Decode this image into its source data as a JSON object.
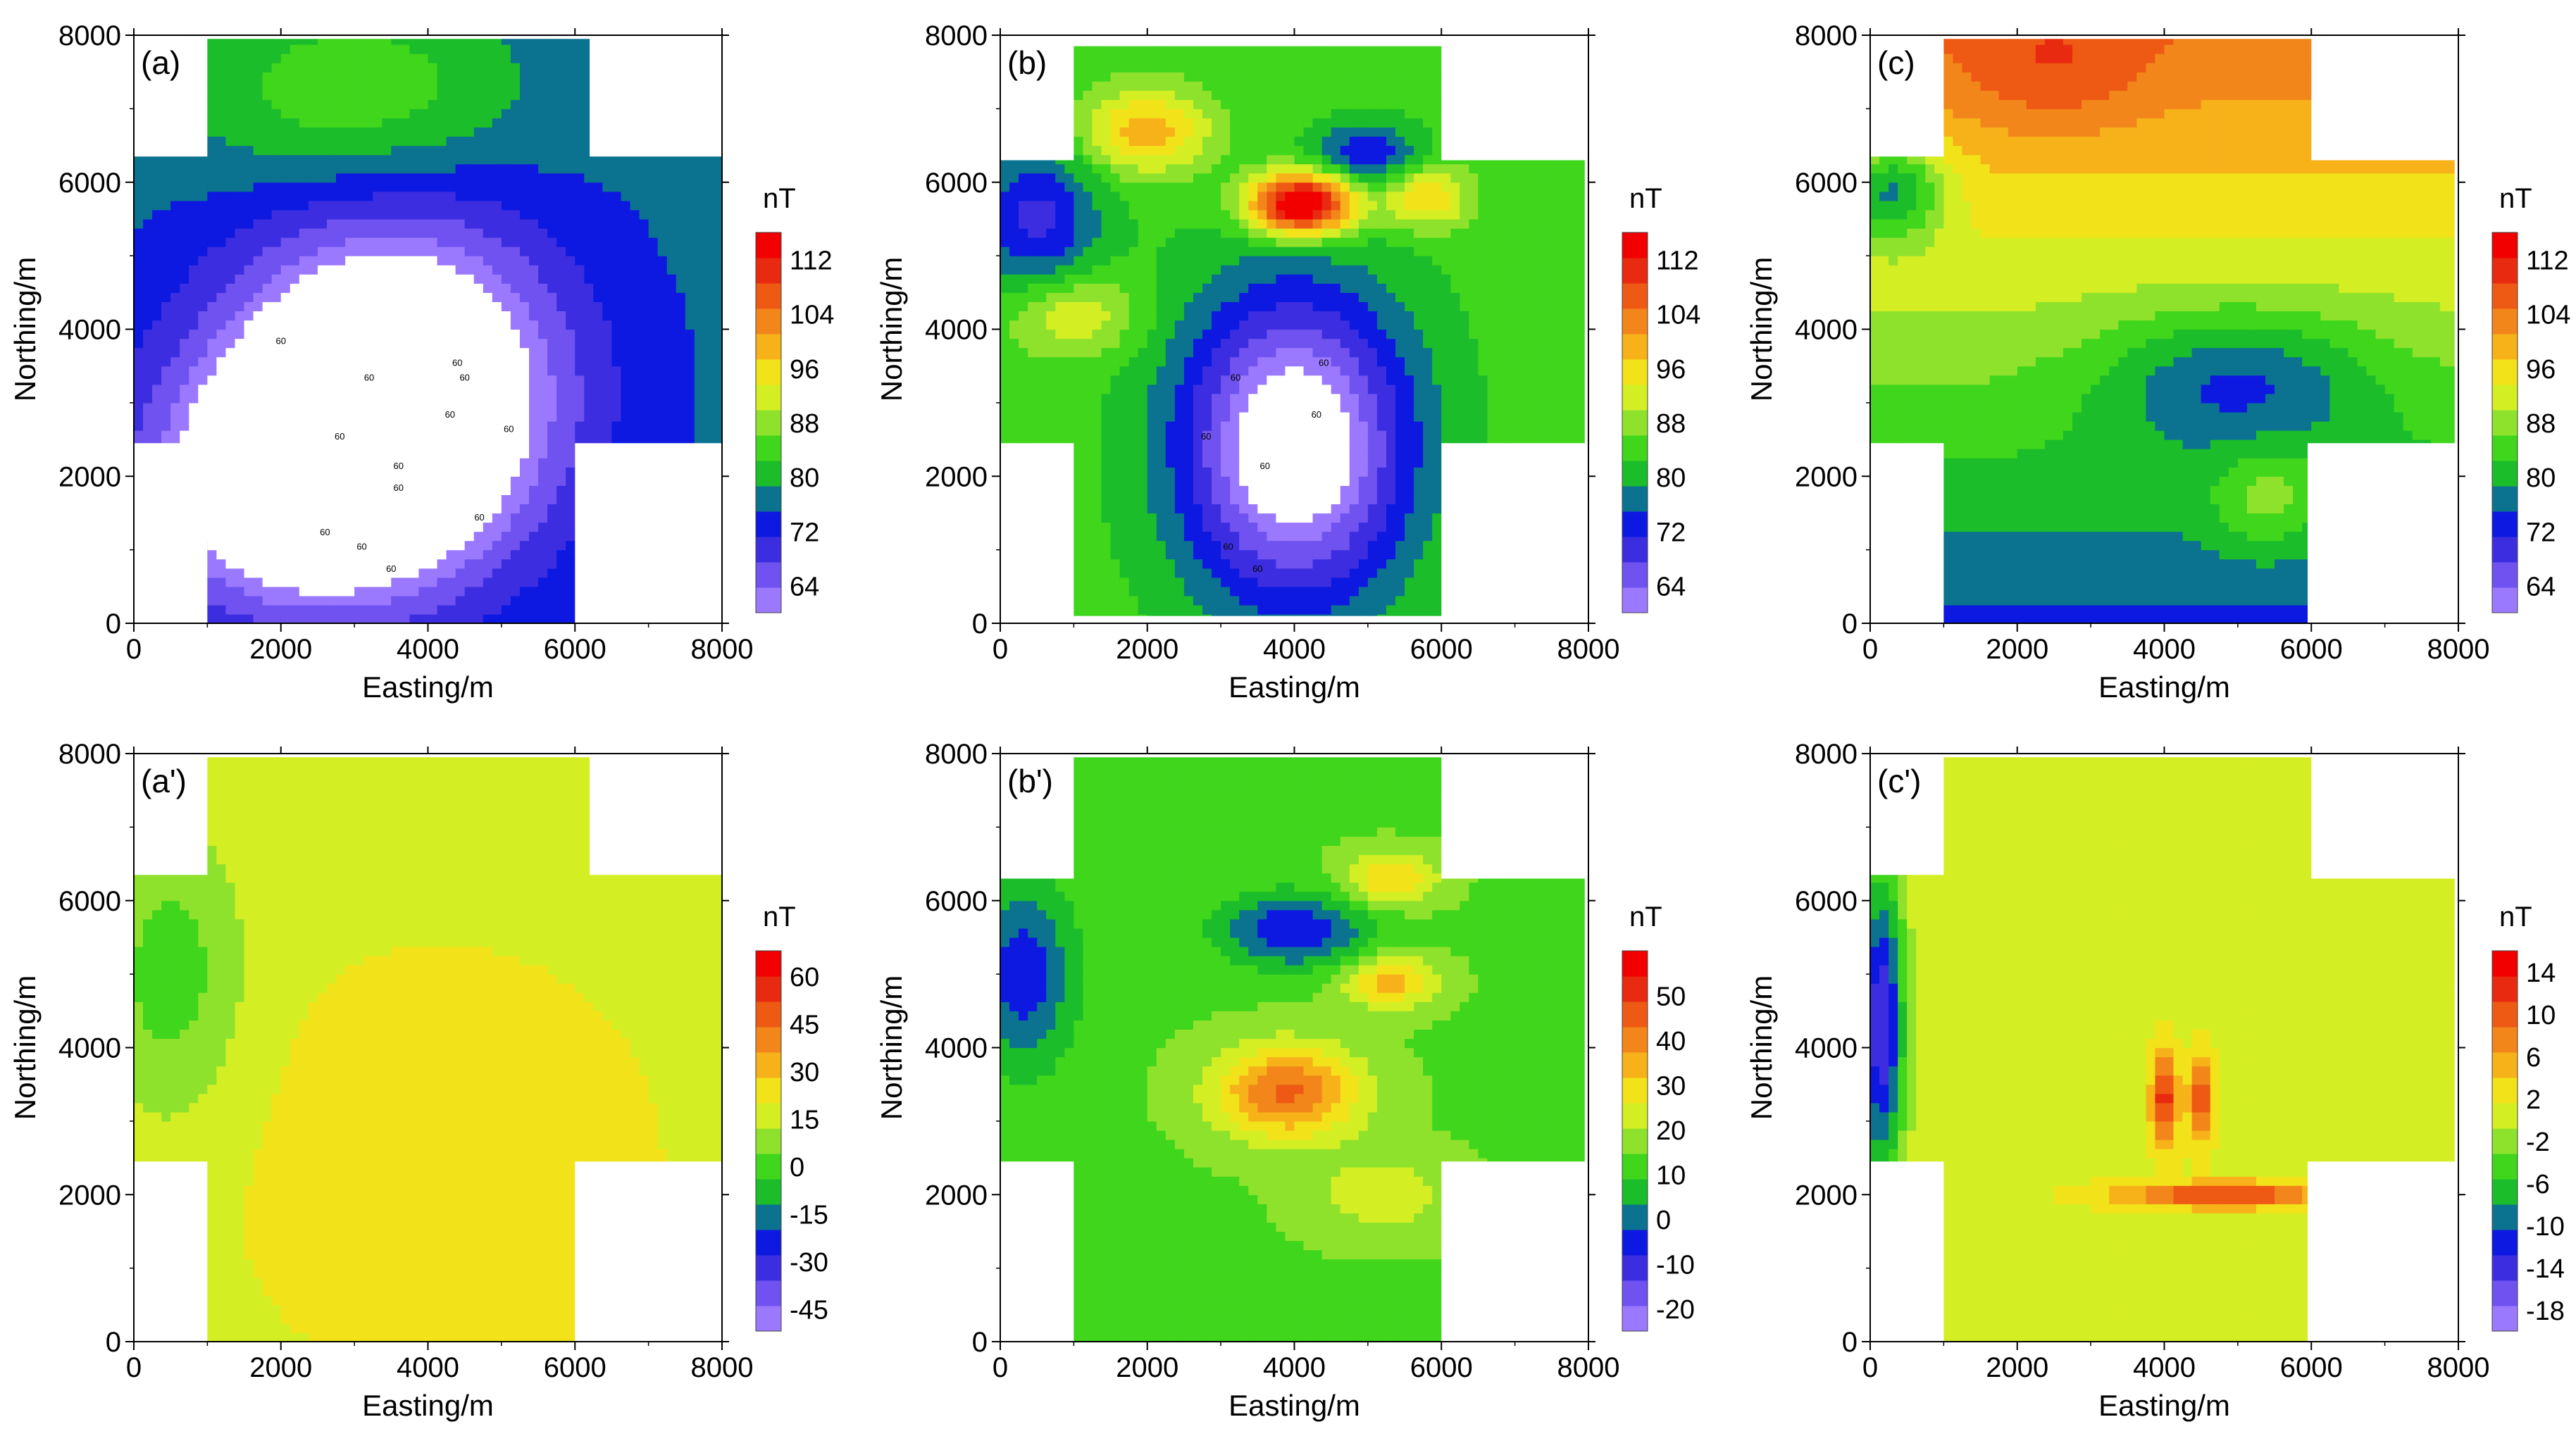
{
  "figure": {
    "colors": {
      "contour_scale": [
        "#9b79ff",
        "#6f52ef",
        "#3c2ee0",
        "#0d18e0",
        "#0b7390",
        "#1bbd2a",
        "#3fd61c",
        "#8fe22c",
        "#d4ee24",
        "#f2e21a",
        "#f7b21a",
        "#f2861a",
        "#ee5a14",
        "#e82a10",
        "#f20000"
      ],
      "axis": "#000000",
      "blank": "#ffffff"
    }
  },
  "chart_data": [
    {
      "type": "heatmap",
      "panel_label": "(a)",
      "xlabel": "Easting/m",
      "ylabel": "Northing/m",
      "xlim": [
        0,
        8000
      ],
      "ylim": [
        0,
        8000
      ],
      "x_ticks": [
        "0",
        "2000",
        "4000",
        "6000",
        "8000"
      ],
      "y_ticks": [
        "0",
        "2000",
        "4000",
        "6000",
        "8000"
      ],
      "colorbar": {
        "unit": "nT",
        "min": 60,
        "max": 116,
        "ticks": [
          "112",
          "104",
          "96",
          "88",
          "80",
          "72",
          "64"
        ]
      },
      "contour_labels": [
        "60",
        "60",
        "60",
        "60",
        "60",
        "60",
        "60",
        "60",
        "60",
        "60",
        "60",
        "60",
        "60"
      ],
      "survey_outline": [
        [
          1000,
          0
        ],
        [
          6000,
          0
        ],
        [
          6000,
          2450
        ],
        [
          8000,
          2450
        ],
        [
          8000,
          6350
        ],
        [
          6200,
          6350
        ],
        [
          6200,
          7950
        ],
        [
          1000,
          7950
        ],
        [
          1000,
          6350
        ],
        [
          0,
          6350
        ],
        [
          0,
          2450
        ],
        [
          1000,
          2450
        ]
      ],
      "features": [
        {
          "kind": "gaussian",
          "x": 3500,
          "y": 3200,
          "sx": 1600,
          "sy": 1600,
          "amp": -30
        },
        {
          "kind": "gaussian",
          "x": 2200,
          "y": 1800,
          "sx": 1500,
          "sy": 1200,
          "amp": -20
        },
        {
          "kind": "gaussian",
          "x": 3000,
          "y": 7200,
          "sx": 1500,
          "sy": 900,
          "amp": 10
        }
      ],
      "base": 76
    },
    {
      "type": "heatmap",
      "panel_label": "(b)",
      "xlabel": "Easting/m",
      "ylabel": "Northing/m",
      "xlim": [
        0,
        8000
      ],
      "ylim": [
        0,
        8000
      ],
      "x_ticks": [
        "0",
        "2000",
        "4000",
        "6000",
        "8000"
      ],
      "y_ticks": [
        "0",
        "2000",
        "4000",
        "6000",
        "8000"
      ],
      "colorbar": {
        "unit": "nT",
        "min": 60,
        "max": 116,
        "ticks": [
          "112",
          "104",
          "96",
          "88",
          "80",
          "72",
          "64"
        ]
      },
      "contour_labels": [
        "60",
        "60",
        "60",
        "60",
        "60",
        "60",
        "60"
      ],
      "survey_outline": [
        [
          1000,
          100
        ],
        [
          6000,
          100
        ],
        [
          6000,
          2450
        ],
        [
          7950,
          2450
        ],
        [
          7950,
          6300
        ],
        [
          6000,
          6300
        ],
        [
          6000,
          7850
        ],
        [
          1000,
          7850
        ],
        [
          1000,
          6300
        ],
        [
          0,
          6300
        ],
        [
          0,
          2450
        ],
        [
          1000,
          2450
        ]
      ],
      "features": [
        {
          "kind": "gaussian",
          "x": 4000,
          "y": 2400,
          "sx": 1100,
          "sy": 1500,
          "amp": -30
        },
        {
          "kind": "gaussian",
          "x": 4100,
          "y": 5700,
          "sx": 500,
          "sy": 300,
          "amp": 38
        },
        {
          "kind": "gaussian",
          "x": 2000,
          "y": 6700,
          "sx": 600,
          "sy": 400,
          "amp": 16
        },
        {
          "kind": "gaussian",
          "x": 5000,
          "y": 6400,
          "sx": 500,
          "sy": 300,
          "amp": -12
        },
        {
          "kind": "gaussian",
          "x": 500,
          "y": 5500,
          "sx": 600,
          "sy": 700,
          "amp": -14
        },
        {
          "kind": "gaussian",
          "x": 1000,
          "y": 4200,
          "sx": 600,
          "sy": 400,
          "amp": 10
        },
        {
          "kind": "gaussian",
          "x": 5800,
          "y": 5800,
          "sx": 400,
          "sy": 300,
          "amp": 14
        }
      ],
      "base": 84
    },
    {
      "type": "heatmap",
      "panel_label": "(c)",
      "xlabel": "Easting/m",
      "ylabel": "Northing/m",
      "xlim": [
        0,
        8000
      ],
      "ylim": [
        0,
        8000
      ],
      "x_ticks": [
        "0",
        "2000",
        "4000",
        "6000",
        "8000"
      ],
      "y_ticks": [
        "0",
        "2000",
        "4000",
        "6000",
        "8000"
      ],
      "colorbar": {
        "unit": "nT",
        "min": 60,
        "max": 116,
        "ticks": [
          "112",
          "104",
          "96",
          "88",
          "80",
          "72",
          "64"
        ]
      },
      "contour_labels": [],
      "survey_outline": [
        [
          1000,
          0
        ],
        [
          5950,
          0
        ],
        [
          5950,
          2450
        ],
        [
          7950,
          2450
        ],
        [
          7950,
          6300
        ],
        [
          6000,
          6300
        ],
        [
          6000,
          7950
        ],
        [
          1000,
          7950
        ],
        [
          1000,
          6350
        ],
        [
          0,
          6350
        ],
        [
          0,
          2450
        ],
        [
          1000,
          2450
        ]
      ],
      "features": [
        {
          "kind": "gradient",
          "y0": 0,
          "y1": 7950,
          "v0": 74,
          "v1": 104
        },
        {
          "kind": "gaussian",
          "x": 5000,
          "y": 3300,
          "sx": 1300,
          "sy": 700,
          "amp": -12
        },
        {
          "kind": "gaussian",
          "x": 300,
          "y": 5900,
          "sx": 500,
          "sy": 500,
          "amp": -18
        },
        {
          "kind": "gaussian",
          "x": 5400,
          "y": 1700,
          "sx": 500,
          "sy": 500,
          "amp": 8
        },
        {
          "kind": "gaussian",
          "x": 2500,
          "y": 7500,
          "sx": 900,
          "sy": 600,
          "amp": 6
        }
      ],
      "base": 0
    },
    {
      "type": "heatmap",
      "panel_label": "(a')",
      "xlabel": "Easting/m",
      "ylabel": "Northing/m",
      "xlim": [
        0,
        8000
      ],
      "ylim": [
        0,
        8000
      ],
      "x_ticks": [
        "0",
        "2000",
        "4000",
        "6000",
        "8000"
      ],
      "y_ticks": [
        "0",
        "2000",
        "4000",
        "6000",
        "8000"
      ],
      "colorbar": {
        "unit": "nT",
        "min": -52,
        "max": 68,
        "ticks": [
          "60",
          "45",
          "30",
          "15",
          "0",
          "-15",
          "-30",
          "-45"
        ]
      },
      "contour_labels": [],
      "survey_outline": [
        [
          1000,
          0
        ],
        [
          6000,
          0
        ],
        [
          6000,
          2450
        ],
        [
          8000,
          2450
        ],
        [
          8000,
          6350
        ],
        [
          6200,
          6350
        ],
        [
          6200,
          7950
        ],
        [
          1000,
          7950
        ],
        [
          1000,
          6350
        ],
        [
          0,
          6350
        ],
        [
          0,
          2450
        ],
        [
          1000,
          2450
        ]
      ],
      "features": [
        {
          "kind": "gaussian",
          "x": 500,
          "y": 5000,
          "sx": 700,
          "sy": 1400,
          "amp": -18
        },
        {
          "kind": "gaussian",
          "x": 4200,
          "y": 2400,
          "sx": 1800,
          "sy": 1800,
          "amp": 8
        }
      ],
      "base": 18
    },
    {
      "type": "heatmap",
      "panel_label": "(b')",
      "xlabel": "Easting/m",
      "ylabel": "Northing/m",
      "xlim": [
        0,
        8000
      ],
      "ylim": [
        0,
        8000
      ],
      "x_ticks": [
        "0",
        "2000",
        "4000",
        "6000",
        "8000"
      ],
      "y_ticks": [
        "0",
        "2000",
        "4000",
        "6000",
        "8000"
      ],
      "colorbar": {
        "unit": "nT",
        "min": -25,
        "max": 60,
        "ticks": [
          "50",
          "40",
          "30",
          "20",
          "10",
          "0",
          "-10",
          "-20"
        ]
      },
      "contour_labels": [],
      "survey_outline": [
        [
          1000,
          0
        ],
        [
          6000,
          0
        ],
        [
          6000,
          2450
        ],
        [
          7950,
          2450
        ],
        [
          7950,
          6300
        ],
        [
          6000,
          6300
        ],
        [
          6000,
          7950
        ],
        [
          1000,
          7950
        ],
        [
          1000,
          6300
        ],
        [
          0,
          6300
        ],
        [
          0,
          2450
        ],
        [
          1000,
          2450
        ]
      ],
      "features": [
        {
          "kind": "gaussian",
          "x": 3900,
          "y": 3400,
          "sx": 700,
          "sy": 450,
          "amp": 30
        },
        {
          "kind": "gaussian",
          "x": 4000,
          "y": 5600,
          "sx": 700,
          "sy": 350,
          "amp": -22
        },
        {
          "kind": "gaussian",
          "x": 300,
          "y": 5000,
          "sx": 500,
          "sy": 900,
          "amp": -20
        },
        {
          "kind": "gaussian",
          "x": 5300,
          "y": 4900,
          "sx": 450,
          "sy": 250,
          "amp": 20
        },
        {
          "kind": "gaussian",
          "x": 5300,
          "y": 6300,
          "sx": 450,
          "sy": 250,
          "amp": 18
        },
        {
          "kind": "gaussian",
          "x": 5200,
          "y": 2000,
          "sx": 700,
          "sy": 400,
          "amp": 10
        }
      ],
      "base": 14
    },
    {
      "type": "heatmap",
      "panel_label": "(c')",
      "xlabel": "Easting/m",
      "ylabel": "Northing/m",
      "xlim": [
        0,
        8000
      ],
      "ylim": [
        0,
        8000
      ],
      "x_ticks": [
        "0",
        "2000",
        "4000",
        "6000",
        "8000"
      ],
      "y_ticks": [
        "0",
        "2000",
        "4000",
        "6000",
        "8000"
      ],
      "colorbar": {
        "unit": "nT",
        "min": -20,
        "max": 16,
        "ticks": [
          "14",
          "10",
          "6",
          "2",
          "-2",
          "-6",
          "-10",
          "-14",
          "-18"
        ]
      },
      "contour_labels": [],
      "survey_outline": [
        [
          1000,
          0
        ],
        [
          5950,
          0
        ],
        [
          5950,
          2450
        ],
        [
          7950,
          2450
        ],
        [
          7950,
          6300
        ],
        [
          6000,
          6300
        ],
        [
          6000,
          7950
        ],
        [
          1000,
          7950
        ],
        [
          1000,
          6350
        ],
        [
          0,
          6350
        ],
        [
          0,
          2450
        ],
        [
          1000,
          2450
        ]
      ],
      "features": [
        {
          "kind": "gaussian",
          "x": 150,
          "y": 4300,
          "sx": 220,
          "sy": 1500,
          "amp": -16
        },
        {
          "kind": "gaussian",
          "x": 4000,
          "y": 3300,
          "sx": 120,
          "sy": 450,
          "amp": 12
        },
        {
          "kind": "gaussian",
          "x": 4500,
          "y": 3300,
          "sx": 120,
          "sy": 400,
          "amp": 10
        },
        {
          "kind": "gaussian",
          "x": 4800,
          "y": 2000,
          "sx": 1000,
          "sy": 120,
          "amp": 11
        }
      ],
      "base": 1
    }
  ]
}
